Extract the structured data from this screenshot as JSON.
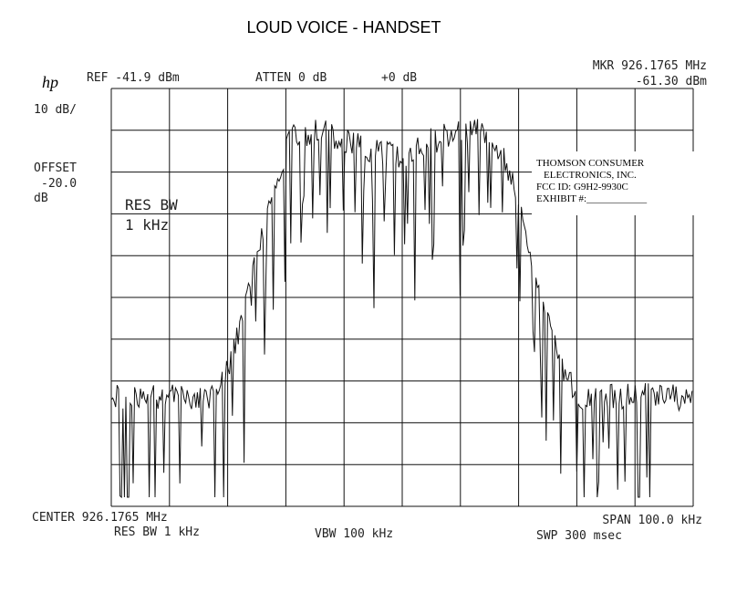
{
  "title": "LOUD VOICE - HANDSET",
  "header": {
    "logo": "hp",
    "ref": "REF -41.9 dBm",
    "atten": "ATTEN 0 dB",
    "offset_gain": "+0 dB",
    "marker_freq": "MKR 926.1765 MHz",
    "marker_level": "-61.30 dBm"
  },
  "left_panel": {
    "scale": "10 dB/",
    "offset_label": "OFFSET",
    "offset_value": "-20.0",
    "offset_unit": "dB"
  },
  "overlay": {
    "res_bw_label": "RES BW",
    "res_bw_value": "1 kHz"
  },
  "stamp": {
    "lines": [
      "THOMSON CONSUMER",
      "ELECTRONICS, INC.",
      "FCC ID: G9H2-9930C",
      "EXHIBIT #:____________"
    ]
  },
  "footer": {
    "center": "CENTER 926.1765 MHz",
    "span": "SPAN 100.0 kHz",
    "res_bw": "RES BW 1 kHz",
    "vbw": "VBW 100 kHz",
    "sweep": "SWP 300 msec"
  }
}
